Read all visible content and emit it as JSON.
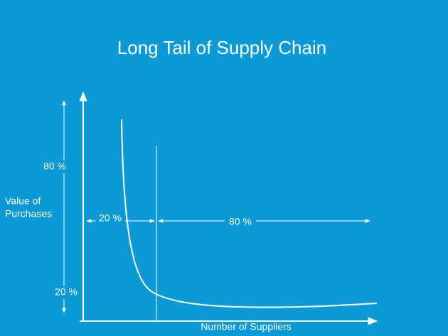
{
  "title": "Long Tail of Supply Chain",
  "y_axis": {
    "label_lines": [
      "Value of",
      "Purchases"
    ],
    "top_share": "80 %",
    "bottom_share": "20 %"
  },
  "x_axis": {
    "label": "Number of Suppliers",
    "left_share": "20 %",
    "right_share": "80 %"
  }
}
